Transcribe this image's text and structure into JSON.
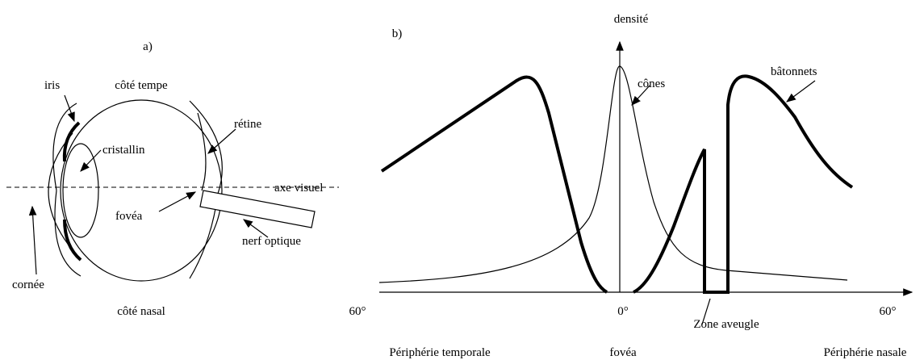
{
  "panel_a": {
    "label": "a)",
    "top": "côté tempe",
    "bottom": "côté nasal",
    "iris": "iris",
    "lens": "cristallin",
    "retina": "rétine",
    "axis": "axe visuel",
    "fovea": "fovéa",
    "nerve": "nerf optique",
    "cornea": "cornée"
  },
  "panel_b": {
    "label": "b)",
    "y_axis": "densité",
    "cones": "cônes",
    "rods": "bâtonnets",
    "left_angle": "60°",
    "center_angle": "0°",
    "right_angle": "60°",
    "blind_zone": "Zone aveugle",
    "left_region": "Périphérie temporale",
    "center_region": "fovéa",
    "right_region": "Périphérie nasale"
  }
}
